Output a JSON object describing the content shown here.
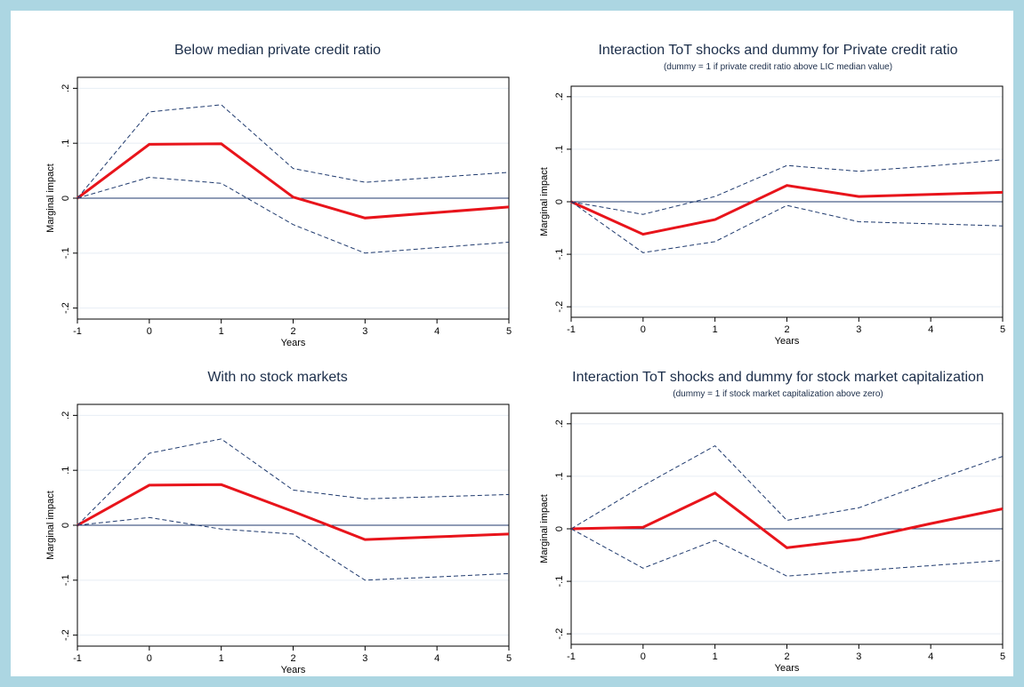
{
  "colors": {
    "frame": "#acd6e2",
    "estimate": "#e8141b",
    "confidence_band": "#1f3a6e",
    "zero_line": "#1f3a6e",
    "title_text": "#1c2e4a",
    "gridline": "#e7eef4"
  },
  "chart_data": [
    {
      "type": "line",
      "title": "Below median private credit ratio",
      "subtitle": "",
      "xlabel": "Years",
      "ylabel": "Marginal impact",
      "x": [
        -1,
        0,
        1,
        2,
        3,
        4,
        5
      ],
      "xticks": [
        "-1",
        "0",
        "1",
        "2",
        "3",
        "4",
        "5"
      ],
      "yticks": [
        "-.2",
        "-.1",
        "0",
        ".1",
        ".2"
      ],
      "yticks_values": [
        -0.2,
        -0.1,
        0,
        0.1,
        0.2
      ],
      "xlim": [
        -1,
        5
      ],
      "ylim": [
        -0.22,
        0.22
      ],
      "grid": true,
      "series": [
        {
          "role": "estimate",
          "values": [
            0,
            0.098,
            0.099,
            0.002,
            -0.036,
            -0.026,
            -0.016
          ]
        },
        {
          "role": "upper",
          "values": [
            0,
            0.157,
            0.17,
            0.054,
            0.029,
            0.038,
            0.047
          ]
        },
        {
          "role": "lower",
          "values": [
            0,
            0.038,
            0.027,
            -0.048,
            -0.1,
            -0.09,
            -0.08
          ]
        }
      ]
    },
    {
      "type": "line",
      "title": "Interaction ToT shocks and dummy for Private credit ratio",
      "subtitle": "(dummy = 1 if private credit ratio above LIC median value)",
      "xlabel": "Years",
      "ylabel": "Marginal impact",
      "x": [
        -1,
        0,
        1,
        2,
        3,
        4,
        5
      ],
      "xticks": [
        "-1",
        "0",
        "1",
        "2",
        "3",
        "4",
        "5"
      ],
      "yticks": [
        "-.2",
        "-.1",
        "0",
        ".1",
        ".2"
      ],
      "yticks_values": [
        -0.2,
        -0.1,
        0,
        0.1,
        0.2
      ],
      "xlim": [
        -1,
        5
      ],
      "ylim": [
        -0.22,
        0.22
      ],
      "grid": true,
      "series": [
        {
          "role": "estimate",
          "values": [
            0,
            -0.062,
            -0.034,
            0.031,
            0.01,
            0.014,
            0.018
          ]
        },
        {
          "role": "upper",
          "values": [
            0,
            -0.024,
            0.01,
            0.069,
            0.058,
            0.068,
            0.08
          ]
        },
        {
          "role": "lower",
          "values": [
            0,
            -0.097,
            -0.076,
            -0.007,
            -0.038,
            -0.042,
            -0.046
          ]
        }
      ]
    },
    {
      "type": "line",
      "title": "With no stock markets",
      "subtitle": "",
      "xlabel": "Years",
      "ylabel": "Marginal impact",
      "x": [
        -1,
        0,
        1,
        2,
        3,
        4,
        5
      ],
      "xticks": [
        "-1",
        "0",
        "1",
        "2",
        "3",
        "4",
        "5"
      ],
      "yticks": [
        "-.2",
        "-.1",
        "0",
        ".1",
        ".2"
      ],
      "yticks_values": [
        -0.2,
        -0.1,
        0,
        0.1,
        0.2
      ],
      "xlim": [
        -1,
        5
      ],
      "ylim": [
        -0.22,
        0.22
      ],
      "grid": true,
      "series": [
        {
          "role": "estimate",
          "values": [
            0,
            0.073,
            0.074,
            0.025,
            -0.026,
            -0.021,
            -0.016
          ]
        },
        {
          "role": "upper",
          "values": [
            0,
            0.131,
            0.157,
            0.064,
            0.048,
            0.052,
            0.056
          ]
        },
        {
          "role": "lower",
          "values": [
            0,
            0.014,
            -0.007,
            -0.016,
            -0.1,
            -0.094,
            -0.088
          ]
        }
      ]
    },
    {
      "type": "line",
      "title": "Interaction ToT shocks and dummy for stock market capitalization",
      "subtitle": "(dummy = 1 if stock market capitalization above zero)",
      "xlabel": "Years",
      "ylabel": "Marginal impact",
      "x": [
        -1,
        0,
        1,
        2,
        3,
        4,
        5
      ],
      "xticks": [
        "-1",
        "0",
        "1",
        "2",
        "3",
        "4",
        "5"
      ],
      "yticks": [
        "-.2",
        "-.1",
        "0",
        ".1",
        ".2"
      ],
      "yticks_values": [
        -0.2,
        -0.1,
        0,
        0.1,
        0.2
      ],
      "xlim": [
        -1,
        5
      ],
      "ylim": [
        -0.22,
        0.22
      ],
      "grid": true,
      "series": [
        {
          "role": "estimate",
          "values": [
            0,
            0.003,
            0.068,
            -0.036,
            -0.02,
            0.01,
            0.038
          ]
        },
        {
          "role": "upper",
          "values": [
            0,
            0.082,
            0.158,
            0.016,
            0.04,
            0.09,
            0.138
          ]
        },
        {
          "role": "lower",
          "values": [
            0,
            -0.075,
            -0.022,
            -0.09,
            -0.08,
            -0.07,
            -0.06
          ]
        }
      ]
    }
  ]
}
